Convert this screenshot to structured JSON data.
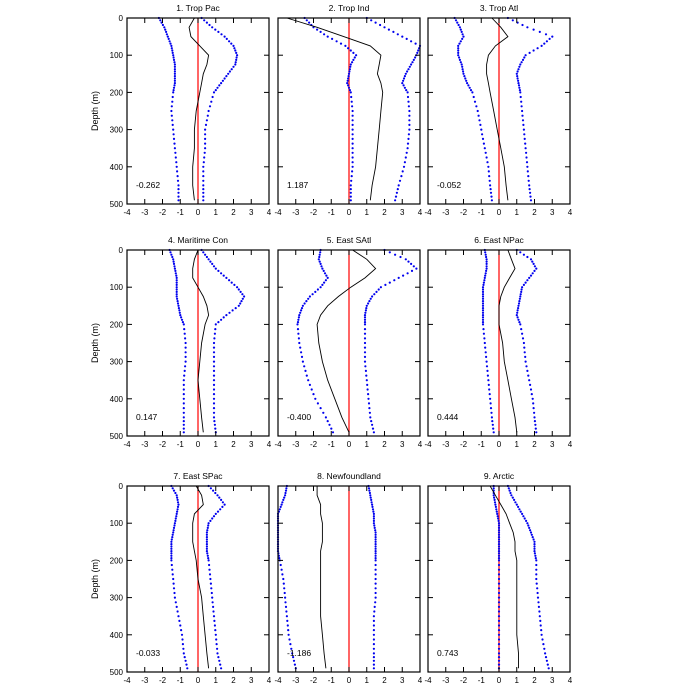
{
  "chart_data": {
    "type": "line",
    "ylabel": "Depth (m)",
    "xlim": [
      -4,
      4
    ],
    "ylim": [
      0,
      500
    ],
    "x_ticks": [
      "-4",
      "-3",
      "-2",
      "-1",
      "0",
      "1",
      "2",
      "3",
      "4"
    ],
    "y_ticks": [
      "0",
      "100",
      "200",
      "300",
      "400",
      "500"
    ],
    "colors": {
      "profile": "#000000",
      "bounds": "#0000ee",
      "zero_line": "#ff0000"
    },
    "panels": [
      {
        "title": "1. Trop Pac",
        "value": "-0.262",
        "depth": [
          0,
          25,
          50,
          75,
          100,
          125,
          150,
          175,
          200,
          250,
          300,
          350,
          400,
          450,
          490
        ],
        "mean": [
          -0.2,
          -0.5,
          -0.4,
          0.1,
          0.6,
          0.5,
          0.3,
          0.2,
          0.1,
          -0.1,
          -0.2,
          -0.2,
          -0.3,
          -0.3,
          -0.2
        ],
        "lower": [
          -2.2,
          -1.9,
          -1.7,
          -1.5,
          -1.4,
          -1.3,
          -1.3,
          -1.3,
          -1.4,
          -1.5,
          -1.4,
          -1.3,
          -1.2,
          -1.1,
          -1.1
        ],
        "upper": [
          0.2,
          0.8,
          1.5,
          2.0,
          2.2,
          2.1,
          1.7,
          1.3,
          0.9,
          0.6,
          0.4,
          0.4,
          0.3,
          0.3,
          0.3
        ]
      },
      {
        "title": "2. Trop Ind",
        "value": "1.187",
        "depth": [
          0,
          25,
          50,
          75,
          100,
          125,
          150,
          175,
          200,
          250,
          300,
          350,
          400,
          450,
          490
        ],
        "mean": [
          -3.5,
          -1.8,
          -0.3,
          1.2,
          1.8,
          1.7,
          1.6,
          1.8,
          1.9,
          1.8,
          1.7,
          1.6,
          1.5,
          1.3,
          1.2
        ],
        "lower": [
          -2.5,
          -2.0,
          -1.2,
          -0.2,
          0.4,
          0.1,
          0.0,
          -0.1,
          0.1,
          0.2,
          0.2,
          0.2,
          0.2,
          0.1,
          0.1
        ],
        "upper": [
          1.0,
          2.0,
          3.0,
          4.0,
          3.8,
          3.5,
          3.2,
          3.0,
          3.3,
          3.4,
          3.4,
          3.3,
          3.1,
          2.8,
          2.6
        ]
      },
      {
        "title": "3. Trop Atl",
        "value": "-0.052",
        "depth": [
          0,
          25,
          50,
          75,
          100,
          125,
          150,
          175,
          200,
          250,
          300,
          350,
          400,
          450,
          490
        ],
        "mean": [
          -0.4,
          0.1,
          0.5,
          -0.2,
          -0.6,
          -0.7,
          -0.7,
          -0.6,
          -0.5,
          -0.3,
          -0.1,
          0.1,
          0.3,
          0.4,
          0.5
        ],
        "lower": [
          -2.5,
          -2.2,
          -2.0,
          -2.3,
          -2.3,
          -2.1,
          -2.0,
          -1.8,
          -1.5,
          -1.2,
          -1.0,
          -0.8,
          -0.6,
          -0.5,
          -0.4
        ],
        "upper": [
          0.5,
          1.6,
          3.0,
          2.4,
          1.5,
          1.2,
          1.0,
          1.1,
          1.2,
          1.3,
          1.4,
          1.5,
          1.6,
          1.7,
          1.8
        ]
      },
      {
        "title": "4. Maritime Con",
        "value": "0.147",
        "depth": [
          0,
          25,
          50,
          75,
          100,
          125,
          150,
          175,
          200,
          250,
          300,
          350,
          400,
          450,
          490
        ],
        "mean": [
          0.0,
          -0.2,
          -0.3,
          -0.3,
          0.0,
          0.3,
          0.5,
          0.6,
          0.4,
          0.2,
          0.1,
          0.0,
          0.1,
          0.2,
          0.3
        ],
        "lower": [
          -1.6,
          -1.4,
          -1.3,
          -1.2,
          -1.2,
          -1.2,
          -1.1,
          -1.0,
          -0.8,
          -0.7,
          -0.7,
          -0.8,
          -0.8,
          -0.8,
          -0.8
        ],
        "upper": [
          0.2,
          0.6,
          1.0,
          1.6,
          2.2,
          2.6,
          2.3,
          1.6,
          1.0,
          0.9,
          0.9,
          0.9,
          0.9,
          0.9,
          1.0
        ]
      },
      {
        "title": "5. East SAtl",
        "value": "-0.400",
        "depth": [
          0,
          25,
          50,
          75,
          100,
          125,
          150,
          175,
          200,
          250,
          300,
          350,
          400,
          450,
          490
        ],
        "mean": [
          0.2,
          1.0,
          1.5,
          0.9,
          0.1,
          -0.6,
          -1.2,
          -1.6,
          -1.8,
          -1.7,
          -1.5,
          -1.2,
          -0.8,
          -0.4,
          0.0
        ],
        "lower": [
          -1.6,
          -1.7,
          -1.5,
          -1.2,
          -1.6,
          -2.2,
          -2.6,
          -2.8,
          -2.9,
          -2.8,
          -2.6,
          -2.3,
          -1.9,
          -1.3,
          -0.9
        ],
        "upper": [
          2.0,
          3.2,
          3.8,
          2.8,
          1.8,
          1.3,
          1.0,
          0.9,
          0.9,
          0.9,
          0.9,
          1.0,
          1.1,
          1.2,
          1.4
        ]
      },
      {
        "title": "6. East NPac",
        "value": "0.444",
        "depth": [
          0,
          25,
          50,
          75,
          100,
          125,
          150,
          175,
          200,
          250,
          300,
          350,
          400,
          450,
          490
        ],
        "mean": [
          0.5,
          0.7,
          0.9,
          0.6,
          0.3,
          0.1,
          0.0,
          0.0,
          0.0,
          0.2,
          0.3,
          0.5,
          0.7,
          0.9,
          1.0
        ],
        "lower": [
          -0.8,
          -0.7,
          -0.7,
          -0.8,
          -0.9,
          -0.9,
          -0.9,
          -0.9,
          -0.9,
          -0.8,
          -0.7,
          -0.6,
          -0.5,
          -0.4,
          -0.3
        ],
        "upper": [
          1.0,
          1.8,
          2.1,
          1.7,
          1.3,
          1.2,
          1.1,
          1.0,
          1.2,
          1.4,
          1.5,
          1.7,
          1.9,
          2.0,
          2.1
        ]
      },
      {
        "title": "7. East SPac",
        "value": "-0.033",
        "depth": [
          0,
          25,
          50,
          75,
          100,
          125,
          150,
          175,
          200,
          250,
          300,
          350,
          400,
          450,
          490
        ],
        "mean": [
          -0.1,
          0.2,
          0.3,
          -0.2,
          -0.3,
          -0.3,
          -0.3,
          -0.2,
          -0.1,
          0.0,
          0.2,
          0.3,
          0.4,
          0.5,
          0.6
        ],
        "lower": [
          -1.5,
          -1.2,
          -1.1,
          -1.2,
          -1.3,
          -1.4,
          -1.5,
          -1.5,
          -1.5,
          -1.4,
          -1.3,
          -1.1,
          -0.9,
          -0.8,
          -0.6
        ],
        "upper": [
          0.6,
          1.1,
          1.5,
          1.0,
          0.6,
          0.5,
          0.5,
          0.5,
          0.6,
          0.7,
          0.8,
          0.9,
          1.0,
          1.1,
          1.3
        ]
      },
      {
        "title": "8. Newfoundland",
        "value": "-1.186",
        "depth": [
          0,
          25,
          50,
          75,
          100,
          125,
          150,
          175,
          200,
          250,
          300,
          350,
          400,
          450,
          490
        ],
        "mean": [
          -1.8,
          -1.8,
          -1.6,
          -1.6,
          -1.5,
          -1.5,
          -1.5,
          -1.6,
          -1.6,
          -1.6,
          -1.6,
          -1.6,
          -1.5,
          -1.4,
          -1.3
        ],
        "lower": [
          -3.5,
          -3.6,
          -3.8,
          -4.0,
          -4.0,
          -4.0,
          -4.0,
          -4.0,
          -3.9,
          -3.7,
          -3.6,
          -3.5,
          -3.4,
          -3.2,
          -3.0
        ],
        "upper": [
          1.1,
          1.2,
          1.3,
          1.4,
          1.4,
          1.5,
          1.5,
          1.5,
          1.5,
          1.5,
          1.5,
          1.4,
          1.4,
          1.4,
          1.4
        ]
      },
      {
        "title": "9. Arctic",
        "value": "0.743",
        "depth": [
          0,
          25,
          50,
          75,
          100,
          125,
          150,
          175,
          200,
          250,
          300,
          350,
          400,
          450,
          490
        ],
        "mean": [
          -0.5,
          -0.2,
          0.1,
          0.4,
          0.6,
          0.8,
          0.9,
          0.9,
          1.0,
          1.0,
          1.0,
          1.0,
          1.0,
          1.1,
          1.1
        ],
        "lower": [
          -0.3,
          -0.3,
          -0.2,
          -0.1,
          0.0,
          0.0,
          0.0,
          0.0,
          0.0,
          0.0,
          0.0,
          0.0,
          0.0,
          0.0,
          0.0
        ],
        "upper": [
          0.5,
          0.7,
          1.0,
          1.3,
          1.6,
          1.8,
          2.0,
          2.0,
          2.1,
          2.1,
          2.2,
          2.3,
          2.4,
          2.6,
          2.8
        ]
      }
    ]
  }
}
